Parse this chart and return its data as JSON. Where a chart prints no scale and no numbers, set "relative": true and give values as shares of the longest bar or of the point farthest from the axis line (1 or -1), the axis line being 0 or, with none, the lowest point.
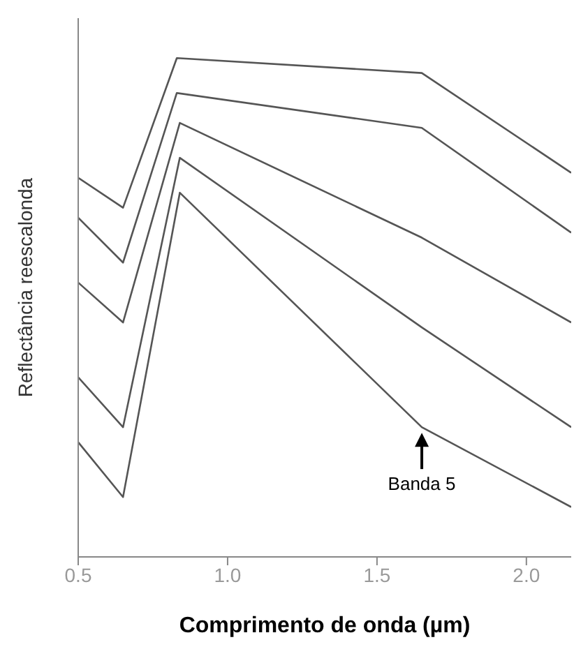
{
  "chart_data": {
    "type": "line",
    "xlabel": "Comprimento de onda (µm)",
    "ylabel": "Reflectância reescalonda",
    "relative": true,
    "tick_labels": "x",
    "xlim": [
      0.5,
      2.15
    ],
    "xticks": [
      0.5,
      {
        "value": 1,
        "label": "1.0"
      },
      1.5,
      {
        "value": 2,
        "label": "2.0"
      }
    ],
    "grid": false,
    "legend": false,
    "marker": "none",
    "line_style": "solid",
    "series": [
      {
        "color": "#555555",
        "x": [
          0.5,
          0.65,
          0.83,
          1.65,
          2.15
        ],
        "values": [
          0.76,
          0.7,
          1.0,
          0.97,
          0.77
        ]
      },
      {
        "color": "#555555",
        "x": [
          0.5,
          0.65,
          0.83,
          1.65,
          2.15
        ],
        "values": [
          0.68,
          0.59,
          0.93,
          0.86,
          0.65
        ]
      },
      {
        "color": "#555555",
        "x": [
          0.5,
          0.65,
          0.84,
          1.65,
          2.15
        ],
        "values": [
          0.55,
          0.47,
          0.87,
          0.64,
          0.47
        ]
      },
      {
        "color": "#555555",
        "x": [
          0.5,
          0.65,
          0.84,
          1.65,
          2.15
        ],
        "values": [
          0.36,
          0.26,
          0.8,
          0.46,
          0.26
        ]
      },
      {
        "color": "#555555",
        "x": [
          0.5,
          0.65,
          0.84,
          1.65,
          2.15
        ],
        "values": [
          0.23,
          0.12,
          0.73,
          0.26,
          0.1
        ]
      }
    ],
    "annotations": [
      {
        "text": "Banda 5",
        "x": 1.65,
        "y": 0.26
      }
    ]
  }
}
